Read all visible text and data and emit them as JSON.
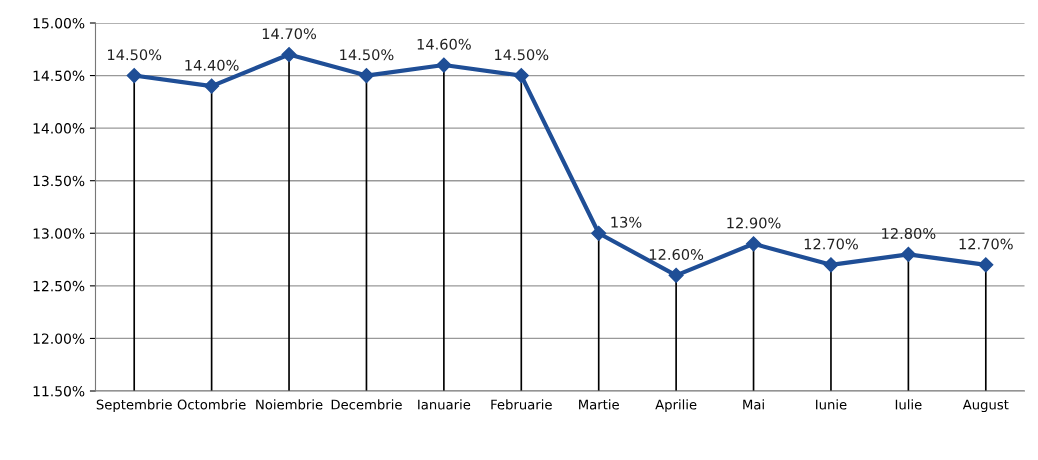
{
  "chart_data": {
    "type": "line",
    "categories": [
      "Septembrie",
      "Octombrie",
      "Noiembrie",
      "Decembrie",
      "Ianuarie",
      "Februarie",
      "Martie",
      "Aprilie",
      "Mai",
      "Iunie",
      "Iulie",
      "August"
    ],
    "series": [
      {
        "color": "#1f4e96",
        "values": [
          14.5,
          14.4,
          14.7,
          14.5,
          14.6,
          14.5,
          13.0,
          12.6,
          12.9,
          12.7,
          12.8,
          12.7
        ],
        "value_labels": [
          "14.50%",
          "14.40%",
          "14.70%",
          "14.50%",
          "14.60%",
          "14.50%",
          "13%",
          "12.60%",
          "12.90%",
          "12.70%",
          "12.80%",
          "12.70%"
        ]
      }
    ],
    "ylim": [
      11.5,
      15.0
    ],
    "yticks": [
      {
        "value": 11.5,
        "label": "11.50%"
      },
      {
        "value": 12.0,
        "label": "12.00%"
      },
      {
        "value": 12.5,
        "label": "12.50%"
      },
      {
        "value": 13.0,
        "label": "13.00%"
      },
      {
        "value": 13.5,
        "label": "13.50%"
      },
      {
        "value": 14.0,
        "label": "14.00%"
      },
      {
        "value": 14.5,
        "label": "14.50%"
      },
      {
        "value": 15.0,
        "label": "15.00%"
      }
    ],
    "grid": true,
    "marker": "diamond",
    "line_style": "solid",
    "legend": false
  }
}
